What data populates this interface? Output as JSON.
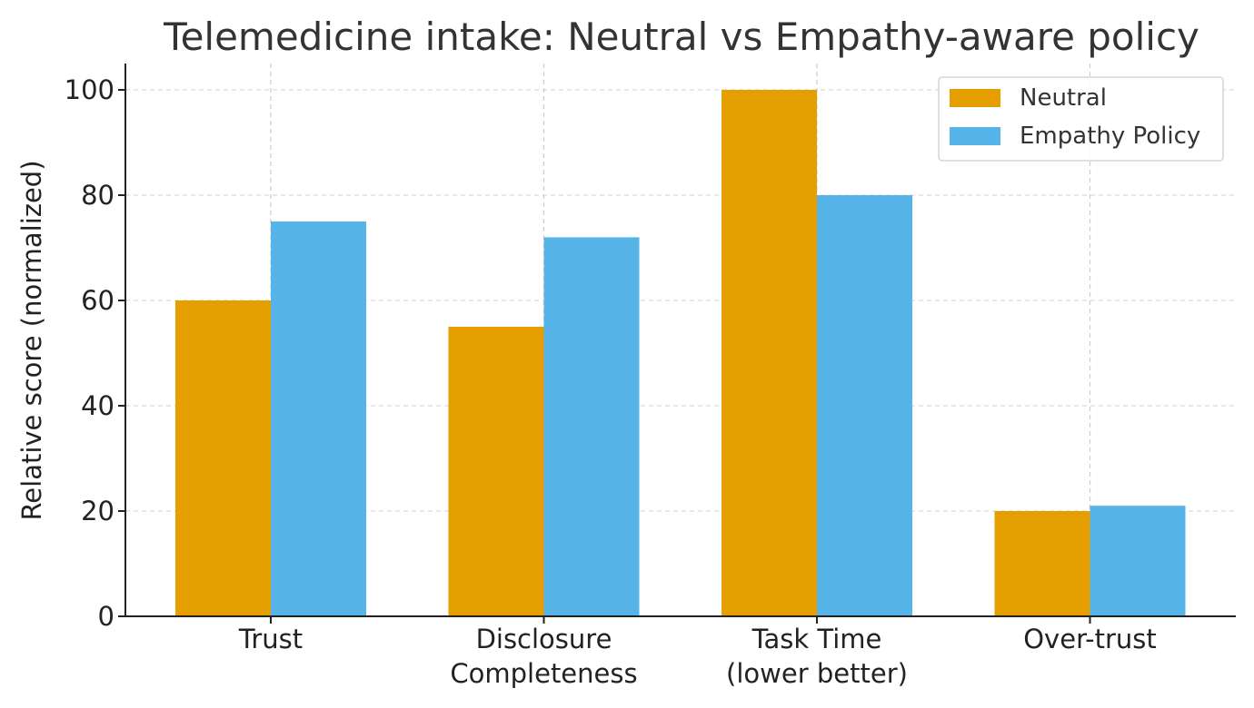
{
  "chart_data": {
    "type": "bar",
    "title": "Telemedicine intake: Neutral vs Empathy-aware policy",
    "xlabel": "",
    "ylabel": "Relative score (normalized)",
    "ylim": [
      0,
      105
    ],
    "yticks": [
      0,
      20,
      40,
      60,
      80,
      100
    ],
    "grid": true,
    "legend_position": "top-right",
    "categories": [
      [
        "Trust"
      ],
      [
        "Disclosure",
        "Completeness"
      ],
      [
        "Task Time",
        "(lower better)"
      ],
      [
        "Over-trust"
      ]
    ],
    "series": [
      {
        "name": "Neutral",
        "color": "#E69F00",
        "values": [
          60,
          55,
          100,
          20
        ]
      },
      {
        "name": "Empathy Policy",
        "color": "#56B4E9",
        "values": [
          75,
          72,
          80,
          21
        ]
      }
    ]
  }
}
